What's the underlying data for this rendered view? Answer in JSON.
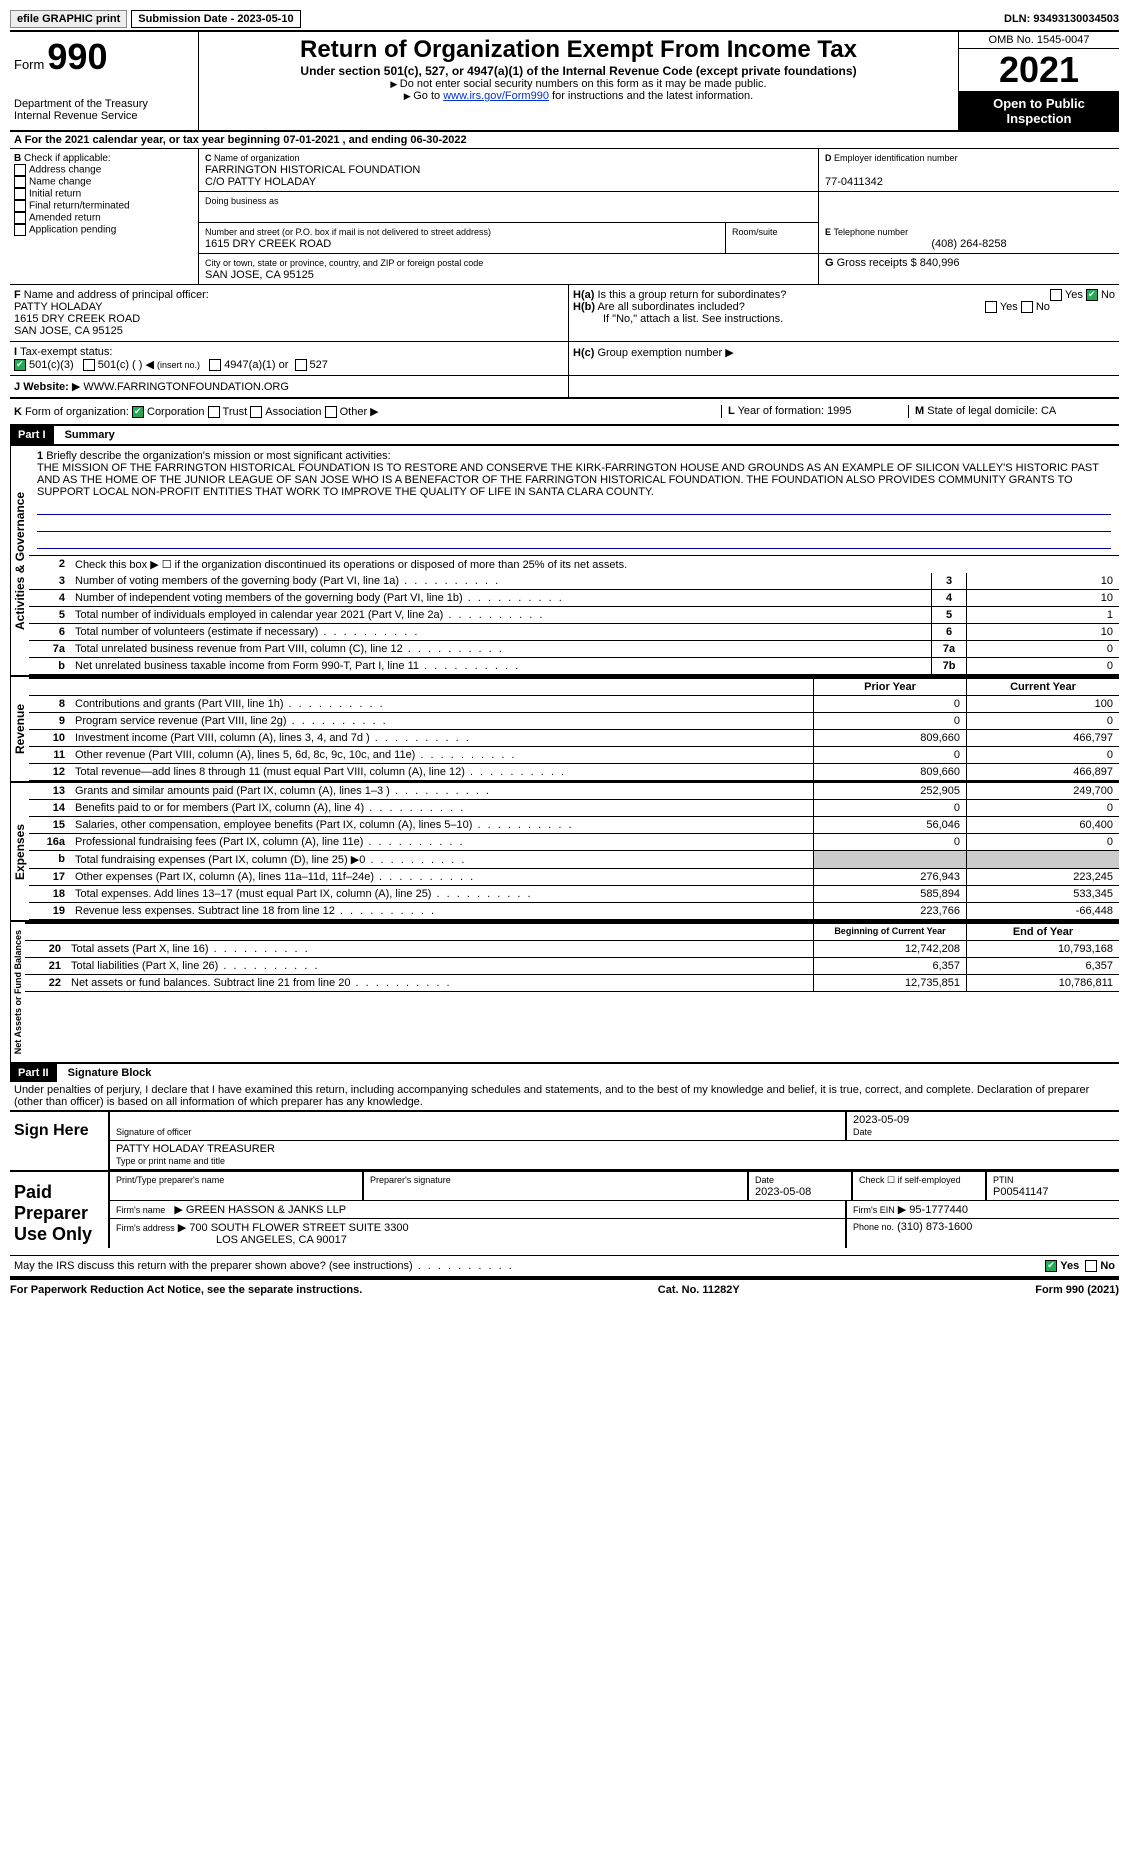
{
  "top": {
    "efile": "efile GRAPHIC print",
    "submission": "Submission Date - 2023-05-10",
    "dln": "DLN: 93493130034503"
  },
  "header": {
    "form_prefix": "Form",
    "form_number": "990",
    "dept": "Department of the Treasury",
    "irs": "Internal Revenue Service",
    "title": "Return of Organization Exempt From Income Tax",
    "sub": "Under section 501(c), 527, or 4947(a)(1) of the Internal Revenue Code (except private foundations)",
    "note1": "Do not enter social security numbers on this form as it may be made public.",
    "note2": "Go to",
    "link": "www.irs.gov/Form990",
    "note3": "for instructions and the latest information.",
    "omb": "OMB No. 1545-0047",
    "year": "2021",
    "open": "Open to Public Inspection"
  },
  "rowA": "For the 2021 calendar year, or tax year beginning 07-01-2021     , and ending 06-30-2022",
  "checkB": {
    "title": "Check if applicable:",
    "items": [
      "Address change",
      "Name change",
      "Initial return",
      "Final return/terminated",
      "Amended return",
      "Application pending"
    ]
  },
  "org": {
    "name_label": "Name of organization",
    "name": "FARRINGTON HISTORICAL FOUNDATION",
    "co": "C/O PATTY HOLADAY",
    "dba_label": "Doing business as",
    "addr_label": "Number and street (or P.O. box if mail is not delivered to street address)",
    "addr": "1615 DRY CREEK ROAD",
    "room_label": "Room/suite",
    "city_label": "City or town, state or province, country, and ZIP or foreign postal code",
    "city": "SAN JOSE, CA  95125"
  },
  "rightD": {
    "ein_label": "Employer identification number",
    "ein": "77-0411342",
    "tel_label": "Telephone number",
    "tel": "(408) 264-8258",
    "gross_label": "Gross receipts $",
    "gross": "840,996"
  },
  "rowF": {
    "label": "Name and address of principal officer:",
    "name": "PATTY HOLADAY",
    "addr": "1615 DRY CREEK ROAD",
    "city": "SAN JOSE, CA  95125"
  },
  "rowH": {
    "ha": "Is this a group return for subordinates?",
    "hb": "Are all subordinates included?",
    "hb_note": "If \"No,\" attach a list. See instructions.",
    "hc": "Group exemption number"
  },
  "rowI": {
    "label": "Tax-exempt status:",
    "a": "501(c)(3)",
    "b": "501(c) (   )",
    "b_note": "(insert no.)",
    "c": "4947(a)(1) or",
    "d": "527"
  },
  "rowJ": {
    "label": "Website:",
    "value": "WWW.FARRINGTONFOUNDATION.ORG"
  },
  "rowK": {
    "label": "Form of organization:",
    "a": "Corporation",
    "b": "Trust",
    "c": "Association",
    "d": "Other"
  },
  "rowL": {
    "label": "Year of formation:",
    "value": "1995"
  },
  "rowM": {
    "label": "State of legal domicile:",
    "value": "CA"
  },
  "part1": {
    "header": "Part I",
    "title": "Summary",
    "vtext_ag": "Activities & Governance",
    "vtext_rev": "Revenue",
    "vtext_exp": "Expenses",
    "vtext_na": "Net Assets or Fund Balances",
    "l1_label": "Briefly describe the organization's mission or most significant activities:",
    "l1_text": "THE MISSION OF THE FARRINGTON HISTORICAL FOUNDATION IS TO RESTORE AND CONSERVE THE KIRK-FARRINGTON HOUSE AND GROUNDS AS AN EXAMPLE OF SILICON VALLEY'S HISTORIC PAST AND AS THE HOME OF THE JUNIOR LEAGUE OF SAN JOSE WHO IS A BENEFACTOR OF THE FARRINGTON HISTORICAL FOUNDATION. THE FOUNDATION ALSO PROVIDES COMMUNITY GRANTS TO SUPPORT LOCAL NON-PROFIT ENTITIES THAT WORK TO IMPROVE THE QUALITY OF LIFE IN SANTA CLARA COUNTY.",
    "l2": "Check this box ▶ ☐  if the organization discontinued its operations or disposed of more than 25% of its net assets.",
    "lines_single": [
      {
        "n": "3",
        "t": "Number of voting members of the governing body (Part VI, line 1a)",
        "box": "3",
        "v": "10"
      },
      {
        "n": "4",
        "t": "Number of independent voting members of the governing body (Part VI, line 1b)",
        "box": "4",
        "v": "10"
      },
      {
        "n": "5",
        "t": "Total number of individuals employed in calendar year 2021 (Part V, line 2a)",
        "box": "5",
        "v": "1"
      },
      {
        "n": "6",
        "t": "Total number of volunteers (estimate if necessary)",
        "box": "6",
        "v": "10"
      },
      {
        "n": "7a",
        "t": "Total unrelated business revenue from Part VIII, column (C), line 12",
        "box": "7a",
        "v": "0"
      },
      {
        "n": "b",
        "t": "Net unrelated business taxable income from Form 990-T, Part I, line 11",
        "box": "7b",
        "v": "0"
      }
    ],
    "col_headers": {
      "prior": "Prior Year",
      "current": "Current Year",
      "boy": "Beginning of Current Year",
      "eoy": "End of Year"
    },
    "revenue": [
      {
        "n": "8",
        "t": "Contributions and grants (Part VIII, line 1h)",
        "p": "0",
        "c": "100"
      },
      {
        "n": "9",
        "t": "Program service revenue (Part VIII, line 2g)",
        "p": "0",
        "c": "0"
      },
      {
        "n": "10",
        "t": "Investment income (Part VIII, column (A), lines 3, 4, and 7d )",
        "p": "809,660",
        "c": "466,797"
      },
      {
        "n": "11",
        "t": "Other revenue (Part VIII, column (A), lines 5, 6d, 8c, 9c, 10c, and 11e)",
        "p": "0",
        "c": "0"
      },
      {
        "n": "12",
        "t": "Total revenue—add lines 8 through 11 (must equal Part VIII, column (A), line 12)",
        "p": "809,660",
        "c": "466,897"
      }
    ],
    "expenses": [
      {
        "n": "13",
        "t": "Grants and similar amounts paid (Part IX, column (A), lines 1–3 )",
        "p": "252,905",
        "c": "249,700"
      },
      {
        "n": "14",
        "t": "Benefits paid to or for members (Part IX, column (A), line 4)",
        "p": "0",
        "c": "0"
      },
      {
        "n": "15",
        "t": "Salaries, other compensation, employee benefits (Part IX, column (A), lines 5–10)",
        "p": "56,046",
        "c": "60,400"
      },
      {
        "n": "16a",
        "t": "Professional fundraising fees (Part IX, column (A), line 11e)",
        "p": "0",
        "c": "0"
      },
      {
        "n": "b",
        "t": "Total fundraising expenses (Part IX, column (D), line 25) ▶0",
        "p": "",
        "c": "",
        "grey": true
      },
      {
        "n": "17",
        "t": "Other expenses (Part IX, column (A), lines 11a–11d, 11f–24e)",
        "p": "276,943",
        "c": "223,245"
      },
      {
        "n": "18",
        "t": "Total expenses. Add lines 13–17 (must equal Part IX, column (A), line 25)",
        "p": "585,894",
        "c": "533,345"
      },
      {
        "n": "19",
        "t": "Revenue less expenses. Subtract line 18 from line 12",
        "p": "223,766",
        "c": "-66,448"
      }
    ],
    "netassets": [
      {
        "n": "20",
        "t": "Total assets (Part X, line 16)",
        "p": "12,742,208",
        "c": "10,793,168"
      },
      {
        "n": "21",
        "t": "Total liabilities (Part X, line 26)",
        "p": "6,357",
        "c": "6,357"
      },
      {
        "n": "22",
        "t": "Net assets or fund balances. Subtract line 21 from line 20",
        "p": "12,735,851",
        "c": "10,786,811"
      }
    ]
  },
  "part2": {
    "header": "Part II",
    "title": "Signature Block",
    "perjury": "Under penalties of perjury, I declare that I have examined this return, including accompanying schedules and statements, and to the best of my knowledge and belief, it is true, correct, and complete. Declaration of preparer (other than officer) is based on all information of which preparer has any knowledge.",
    "sign_here": "Sign Here",
    "sig_officer": "Signature of officer",
    "sig_date": "2023-05-09",
    "date_label": "Date",
    "officer_name": "PATTY HOLADAY  TREASURER",
    "type_name": "Type or print name and title",
    "paid": "Paid Preparer Use Only",
    "prep_name_label": "Print/Type preparer's name",
    "prep_sig_label": "Preparer's signature",
    "prep_date_label": "Date",
    "prep_date": "2023-05-08",
    "check_self": "Check ☐ if self-employed",
    "ptin_label": "PTIN",
    "ptin": "P00541147",
    "firm_name_label": "Firm's name",
    "firm_name": "GREEN HASSON & JANKS LLP",
    "firm_ein_label": "Firm's EIN",
    "firm_ein": "95-1777440",
    "firm_addr_label": "Firm's address",
    "firm_addr": "700 SOUTH FLOWER STREET SUITE 3300",
    "firm_city": "LOS ANGELES, CA  90017",
    "phone_label": "Phone no.",
    "phone": "(310) 873-1600",
    "discuss": "May the IRS discuss this return with the preparer shown above? (see instructions)",
    "yes": "Yes",
    "no": "No"
  },
  "footer": {
    "pra": "For Paperwork Reduction Act Notice, see the separate instructions.",
    "cat": "Cat. No. 11282Y",
    "form": "Form 990 (2021)"
  }
}
